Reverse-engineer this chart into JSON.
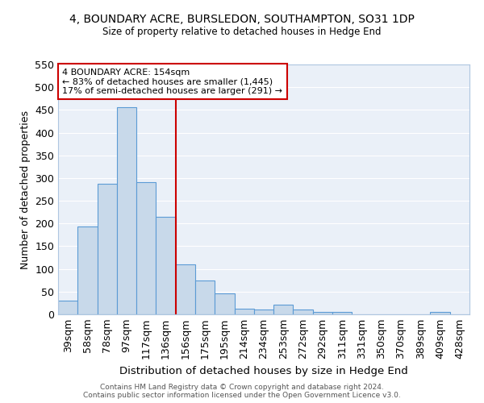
{
  "title1": "4, BOUNDARY ACRE, BURSLEDON, SOUTHAMPTON, SO31 1DP",
  "title2": "Size of property relative to detached houses in Hedge End",
  "xlabel": "Distribution of detached houses by size in Hedge End",
  "ylabel": "Number of detached properties",
  "categories": [
    "39sqm",
    "58sqm",
    "78sqm",
    "97sqm",
    "117sqm",
    "136sqm",
    "156sqm",
    "175sqm",
    "195sqm",
    "214sqm",
    "234sqm",
    "253sqm",
    "272sqm",
    "292sqm",
    "311sqm",
    "331sqm",
    "350sqm",
    "370sqm",
    "389sqm",
    "409sqm",
    "428sqm"
  ],
  "values": [
    30,
    193,
    287,
    456,
    291,
    214,
    110,
    75,
    47,
    13,
    11,
    22,
    10,
    5,
    6,
    0,
    0,
    0,
    0,
    6,
    0
  ],
  "bar_color": "#c8d9ea",
  "bar_edge_color": "#5b9bd5",
  "red_line_index": 6,
  "annotation_title": "4 BOUNDARY ACRE: 154sqm",
  "annotation_line1": "← 83% of detached houses are smaller (1,445)",
  "annotation_line2": "17% of semi-detached houses are larger (291) →",
  "annotation_color": "#cc0000",
  "ylim": [
    0,
    550
  ],
  "yticks": [
    0,
    50,
    100,
    150,
    200,
    250,
    300,
    350,
    400,
    450,
    500,
    550
  ],
  "background_color": "#eaf0f8",
  "grid_color": "#ffffff",
  "footer1": "Contains HM Land Registry data © Crown copyright and database right 2024.",
  "footer2": "Contains public sector information licensed under the Open Government Licence v3.0."
}
